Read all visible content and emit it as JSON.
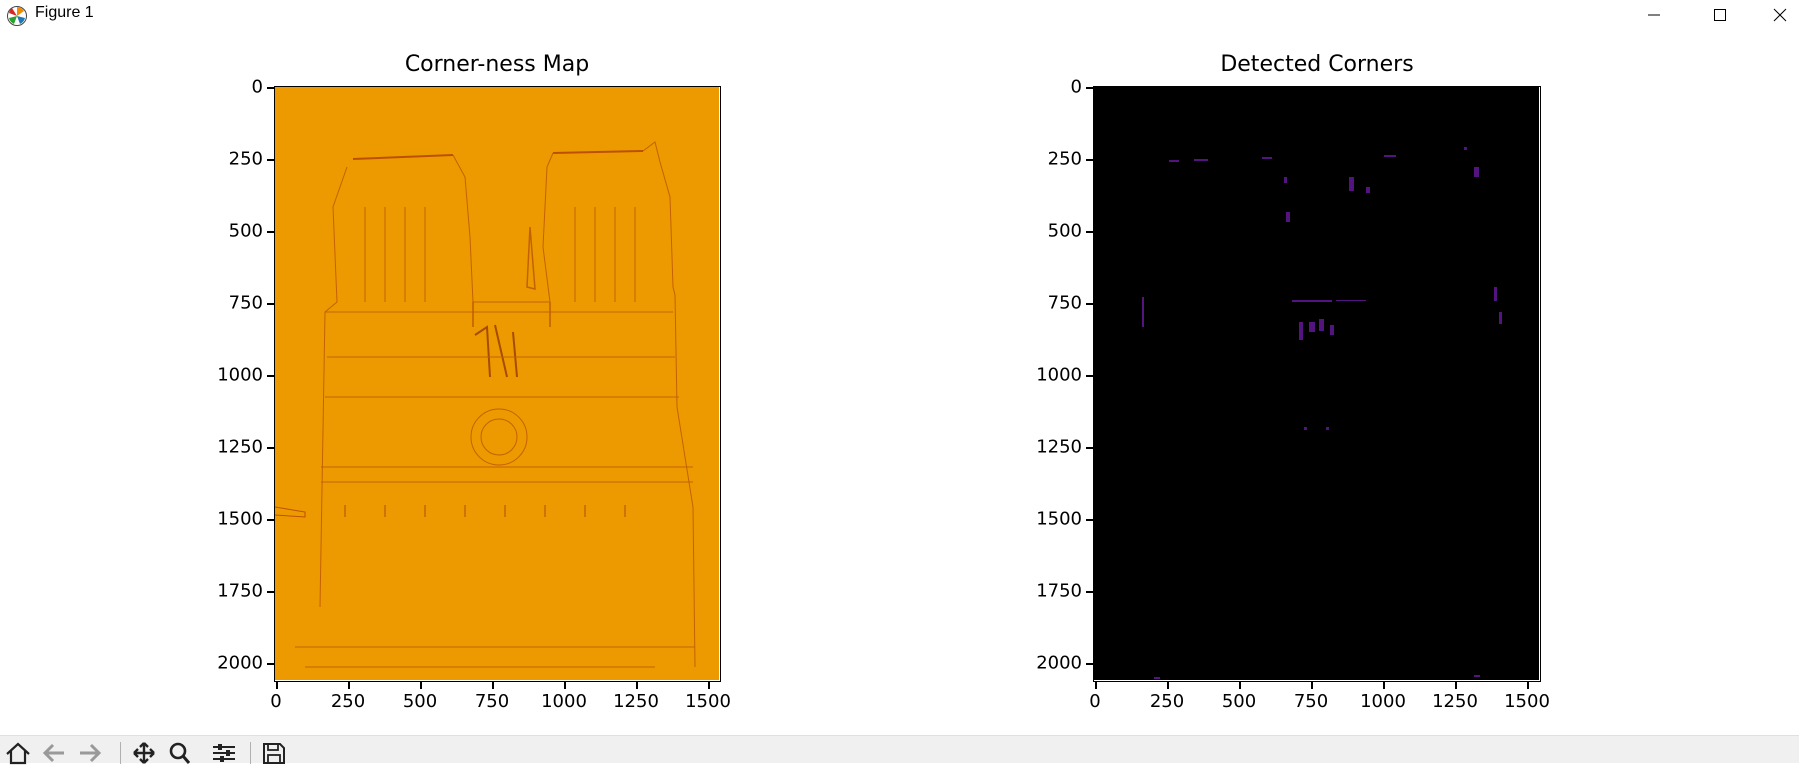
{
  "window": {
    "title": "Figure 1",
    "minimize_icon": "minimize-icon",
    "maximize_icon": "maximize-icon",
    "close_icon": "close-icon",
    "app_icon": "matplotlib-logo-icon"
  },
  "figure": {
    "axes": [
      {
        "title": "Corner-ness Map",
        "background_color": "#ec9a00",
        "edge_color": "#b34a00",
        "yticks": [
          "0",
          "250",
          "500",
          "750",
          "1000",
          "1250",
          "1500",
          "1750",
          "2000"
        ],
        "xticks": [
          "0",
          "250",
          "500",
          "750",
          "1000",
          "1250",
          "1500"
        ]
      },
      {
        "title": "Detected Corners",
        "background_color": "#000000",
        "edge_color": "#6a1aa0",
        "yticks": [
          "0",
          "250",
          "500",
          "750",
          "1000",
          "1250",
          "1500",
          "1750",
          "2000"
        ],
        "xticks": [
          "0",
          "250",
          "500",
          "750",
          "1000",
          "1250",
          "1500"
        ]
      }
    ]
  },
  "toolbar": {
    "buttons": [
      {
        "name": "home-icon"
      },
      {
        "name": "back-icon"
      },
      {
        "name": "forward-icon"
      },
      {
        "name": "pan-icon"
      },
      {
        "name": "zoom-icon"
      },
      {
        "name": "configure-subplots-icon"
      },
      {
        "name": "save-icon"
      }
    ]
  }
}
